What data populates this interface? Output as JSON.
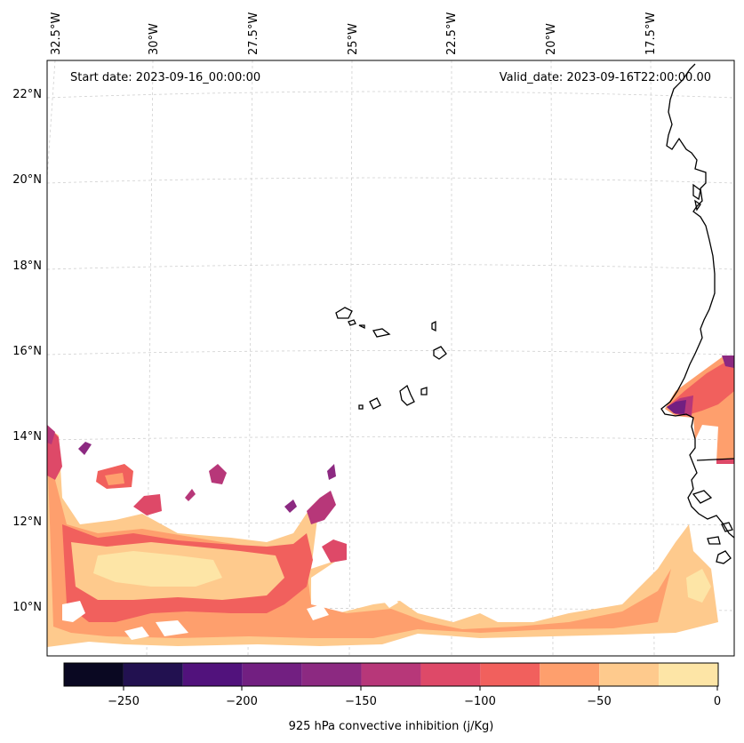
{
  "map": {
    "start_date": "Start date: 2023-09-16_00:00:00",
    "valid_date": "Valid_date: 2023-09-16T22:00:00.00",
    "lon_labels": [
      "32.5°W",
      "30°W",
      "27.5°W",
      "25°W",
      "22.5°W",
      "20°W",
      "17.5°W"
    ],
    "lat_labels": [
      "22°N",
      "20°N",
      "18°N",
      "16°N",
      "14°N",
      "12°N",
      "10°N"
    ],
    "gridlines": true,
    "projection_note": "",
    "fill_colors": {
      "cat_-25_0": "#fde5a6",
      "cat_-50_-25": "#feca8d",
      "cat_-75_-50": "#fe9f6d",
      "cat_-100_-75": "#f1605d",
      "cat_-125_-100": "#de4968",
      "cat_-150_-125": "#b73779",
      "cat_-175_-150": "#8c2981",
      "cat_-200_-175": "#721f81",
      "cat_-225_-200": "#51127c",
      "cat_-250_-225": "#221150",
      "cat_-275_-250": "#0a0822"
    }
  },
  "colorbar": {
    "title": "925 hPa convective inhibition (j/Kg)",
    "tick_labels": [
      "−250",
      "−200",
      "−150",
      "−100",
      "−50",
      "0"
    ],
    "levels": [
      -275,
      -250,
      -225,
      -200,
      -175,
      -150,
      -125,
      -100,
      -75,
      -50,
      -25,
      0
    ],
    "colors": [
      "#0a0822",
      "#221150",
      "#51127c",
      "#721f81",
      "#8c2981",
      "#b73779",
      "#de4968",
      "#f1605d",
      "#fe9f6d",
      "#feca8d",
      "#fde5a6"
    ]
  }
}
